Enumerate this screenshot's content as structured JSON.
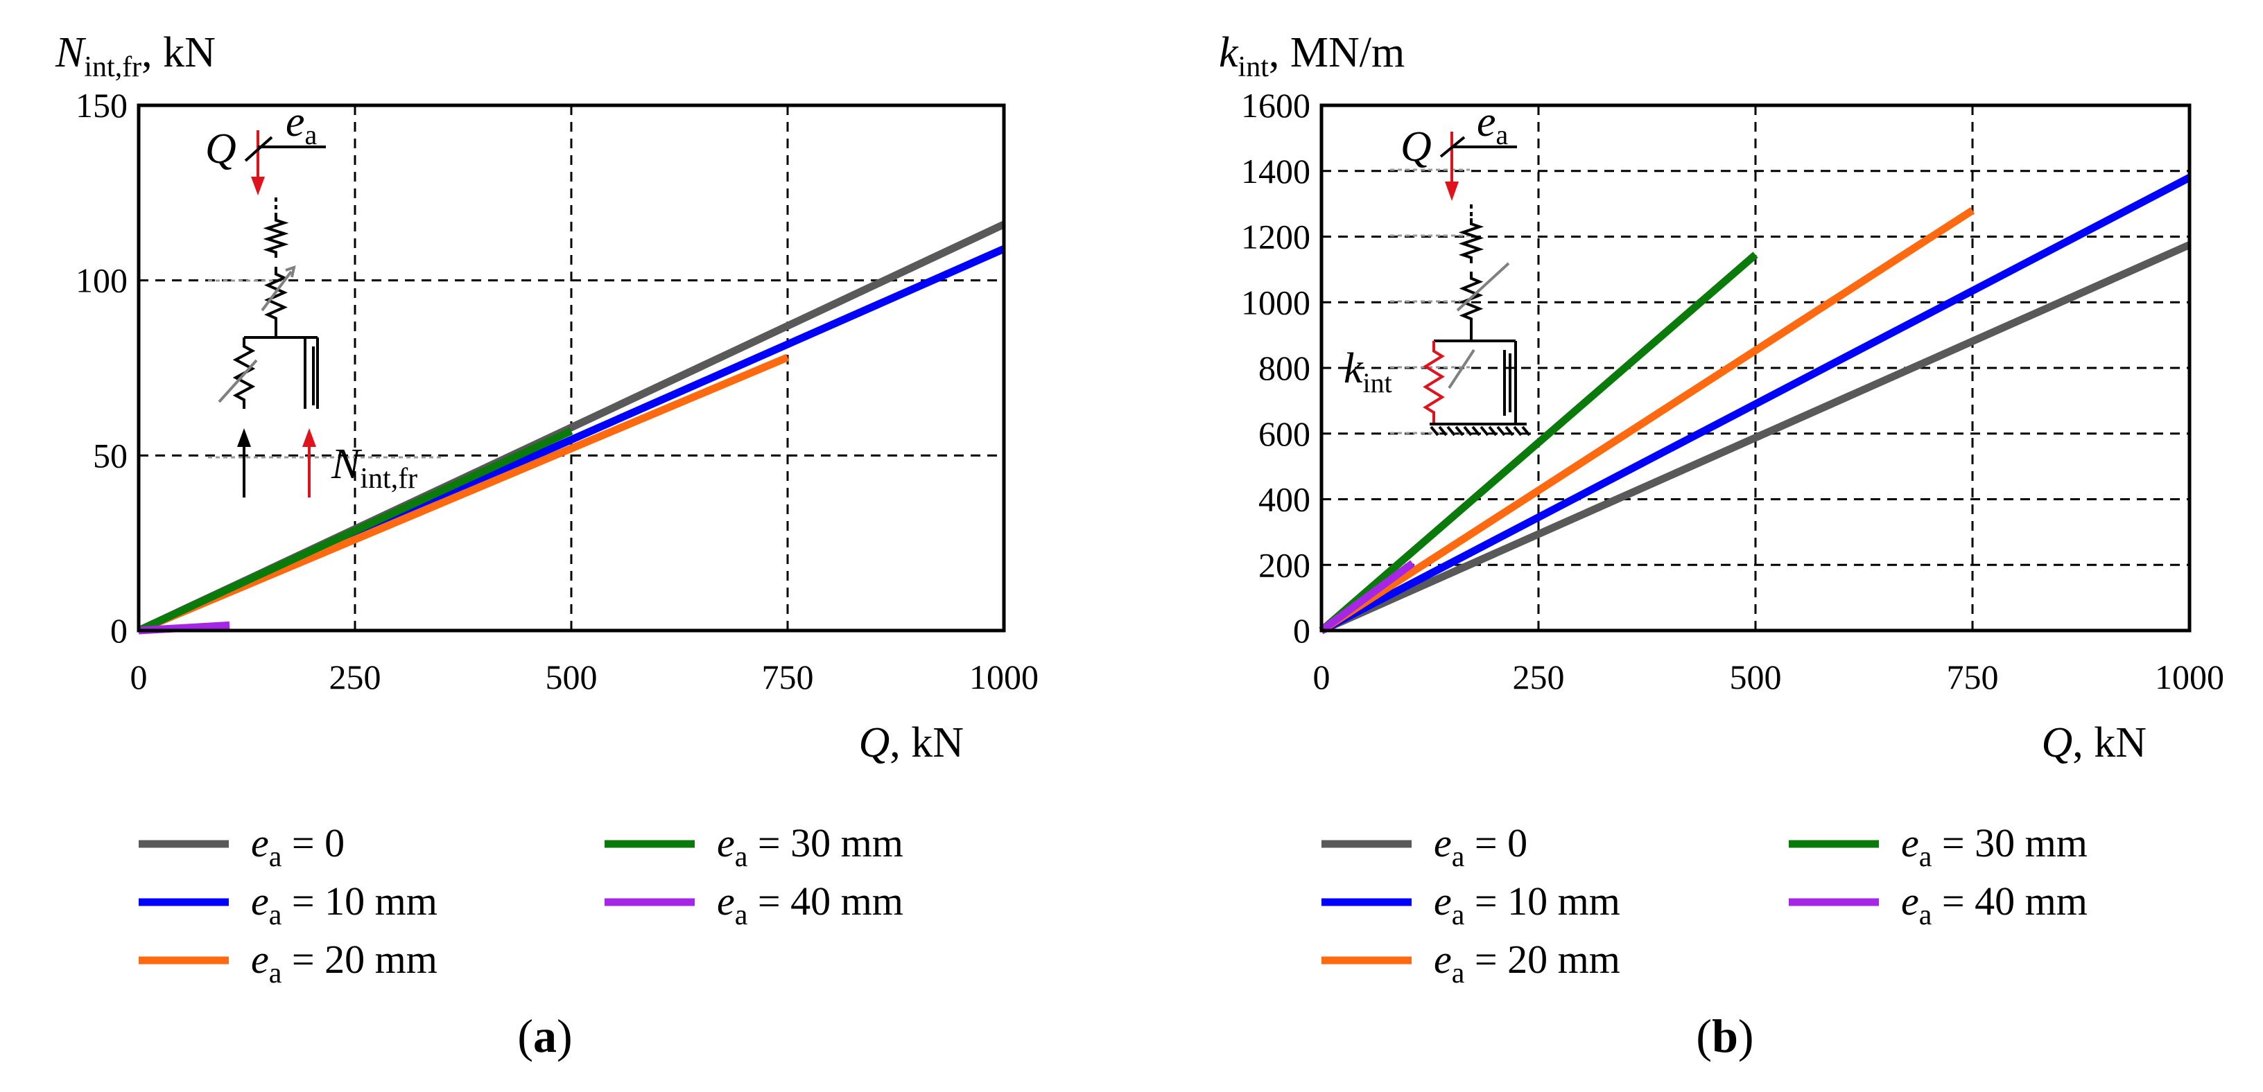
{
  "chart_data": [
    {
      "id": "a",
      "type": "line",
      "caption": "a",
      "y_symbol": "N",
      "y_subscript": "int,fr",
      "y_unit": ", kN",
      "x_symbol": "Q",
      "x_unit": ", kN",
      "xlim": [
        0,
        1000
      ],
      "ylim": [
        0,
        150
      ],
      "xticks": [
        0,
        250,
        500,
        750,
        1000
      ],
      "yticks": [
        0,
        50,
        100,
        150
      ],
      "grid": true,
      "legend_position": "bottom",
      "series": [
        {
          "ea": "0",
          "unit": "",
          "color": "#595959",
          "x": [
            0,
            1000
          ],
          "y": [
            0,
            116
          ]
        },
        {
          "ea": "10",
          "unit": " mm",
          "color": "#0000ff",
          "x": [
            0,
            1000
          ],
          "y": [
            0,
            109
          ]
        },
        {
          "ea": "20",
          "unit": " mm",
          "color": "#ff6a10",
          "x": [
            0,
            750
          ],
          "y": [
            0,
            78
          ]
        },
        {
          "ea": "30",
          "unit": " mm",
          "color": "#0a7a0a",
          "x": [
            0,
            500
          ],
          "y": [
            0,
            57
          ]
        },
        {
          "ea": "40",
          "unit": " mm",
          "color": "#a626e6",
          "x": [
            0,
            105
          ],
          "y": [
            0,
            1.5
          ]
        }
      ],
      "inset": {
        "force_symbol": "Q",
        "ecc_symbol": "e",
        "ecc_subscript": "a",
        "reaction_symbol": "N",
        "reaction_subscript": "int,fr"
      }
    },
    {
      "id": "b",
      "type": "line",
      "caption": "b",
      "y_symbol": "k",
      "y_subscript": "int",
      "y_unit": ", MN/m",
      "x_symbol": "Q",
      "x_unit": ", kN",
      "xlim": [
        0,
        1000
      ],
      "ylim": [
        0,
        1600
      ],
      "xticks": [
        0,
        250,
        500,
        750,
        1000
      ],
      "yticks": [
        0,
        200,
        400,
        600,
        800,
        1000,
        1200,
        1400,
        1600
      ],
      "grid": true,
      "legend_position": "bottom",
      "series": [
        {
          "ea": "0",
          "unit": "",
          "color": "#595959",
          "x": [
            0,
            1000
          ],
          "y": [
            0,
            1175
          ]
        },
        {
          "ea": "10",
          "unit": " mm",
          "color": "#0000ff",
          "x": [
            0,
            1000
          ],
          "y": [
            0,
            1380
          ]
        },
        {
          "ea": "20",
          "unit": " mm",
          "color": "#ff6a10",
          "x": [
            0,
            750
          ],
          "y": [
            0,
            1280
          ]
        },
        {
          "ea": "30",
          "unit": " mm",
          "color": "#0a7a0a",
          "x": [
            0,
            500
          ],
          "y": [
            0,
            1145
          ]
        },
        {
          "ea": "40",
          "unit": " mm",
          "color": "#a626e6",
          "x": [
            0,
            105
          ],
          "y": [
            0,
            205
          ]
        }
      ],
      "inset": {
        "force_symbol": "Q",
        "ecc_symbol": "e",
        "ecc_subscript": "a",
        "stiffness_symbol": "k",
        "stiffness_subscript": "int"
      }
    }
  ]
}
